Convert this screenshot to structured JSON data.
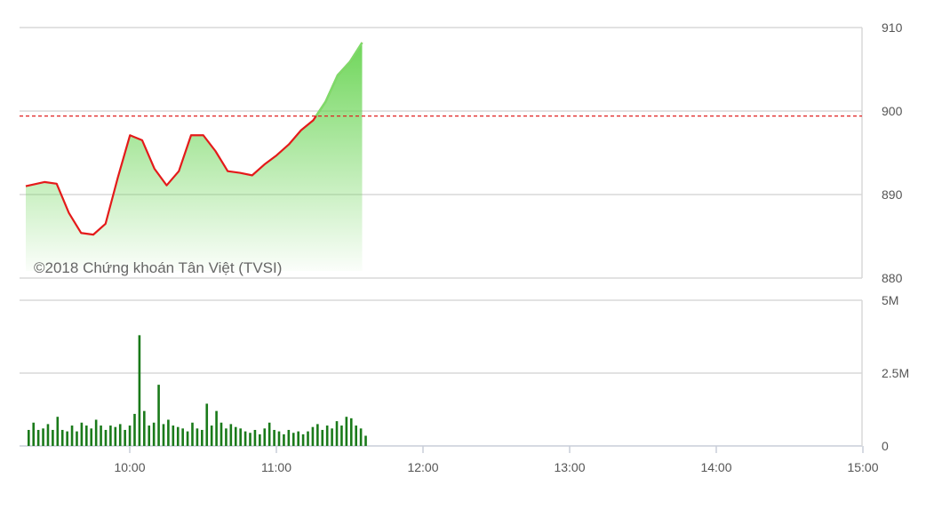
{
  "chart_data": [
    {
      "type": "area",
      "watermark": "©2018 Chứng khoán Tân Việt (TVSI)",
      "y_ticks": [
        "910",
        "900",
        "890",
        "880"
      ],
      "ylim": [
        880,
        910
      ],
      "grid": true,
      "reference_line": {
        "value": 899.4,
        "style": "dashed",
        "color": "#e02020"
      },
      "line_color": "#e41a1a",
      "fill_color": "#7ddc6a",
      "x": [
        "9:15",
        "9:20",
        "9:25",
        "9:30",
        "9:35",
        "9:40",
        "9:45",
        "9:50",
        "9:55",
        "10:00",
        "10:05",
        "10:10",
        "10:15",
        "10:20",
        "10:25",
        "10:30",
        "10:35",
        "10:40",
        "10:45",
        "10:50",
        "10:55",
        "11:00",
        "11:05",
        "11:10",
        "11:15",
        "11:20",
        "11:25",
        "11:30"
      ],
      "values": [
        891.0,
        891.5,
        891.3,
        887.8,
        885.4,
        885.2,
        886.5,
        892.0,
        897.1,
        896.5,
        893.1,
        891.1,
        892.8,
        897.1,
        897.1,
        895.2,
        892.8,
        892.6,
        892.3,
        893.6,
        894.7,
        896.0,
        897.7,
        898.9,
        901.1,
        904.3,
        905.9,
        908.2
      ]
    },
    {
      "type": "bar",
      "y_ticks": [
        "5M",
        "2.5M",
        "0"
      ],
      "ylim": [
        0,
        5000000
      ],
      "bar_color": "#1a7a1a",
      "x_ticks": [
        "10:00",
        "11:00",
        "12:00",
        "13:00",
        "14:00",
        "15:00"
      ],
      "x_start": "9:15",
      "x_interval_minutes": 2,
      "values": [
        550000,
        800000,
        550000,
        600000,
        750000,
        550000,
        1000000,
        550000,
        500000,
        700000,
        500000,
        800000,
        700000,
        600000,
        900000,
        700000,
        550000,
        700000,
        650000,
        750000,
        550000,
        700000,
        1100000,
        3800000,
        1200000,
        700000,
        800000,
        2100000,
        750000,
        900000,
        700000,
        650000,
        600000,
        500000,
        800000,
        600000,
        550000,
        1450000,
        700000,
        1200000,
        800000,
        600000,
        750000,
        650000,
        600000,
        500000,
        450000,
        550000,
        400000,
        600000,
        800000,
        550000,
        500000,
        400000,
        550000,
        450000,
        500000,
        400000,
        500000,
        650000,
        750000,
        550000,
        700000,
        600000,
        850000,
        700000,
        1000000,
        950000,
        700000,
        600000,
        350000
      ]
    }
  ]
}
